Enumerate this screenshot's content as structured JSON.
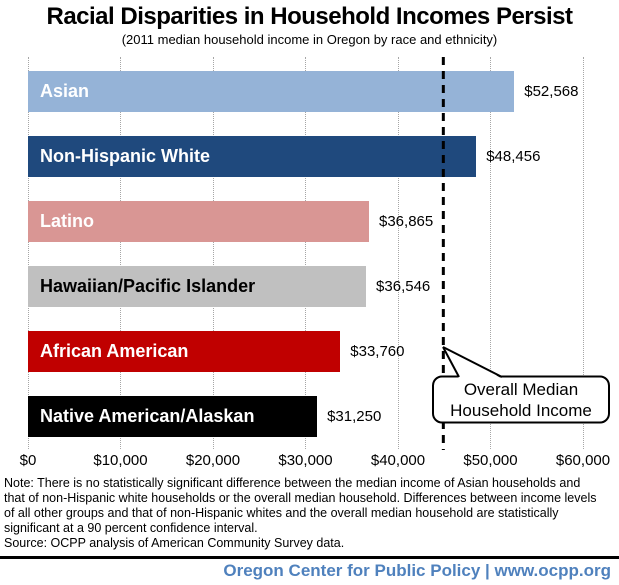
{
  "title": "Racial Disparities in Household Incomes Persist",
  "subtitle": "(2011 median household income in Oregon by race and ethnicity)",
  "chart_data": {
    "type": "bar",
    "orientation": "horizontal",
    "title": "Racial Disparities in Household Incomes Persist",
    "subtitle": "(2011 median household income in Oregon by race and ethnicity)",
    "categories": [
      "Asian",
      "Non-Hispanic White",
      "Latino",
      "Hawaiian/Pacific Islander",
      "African American",
      "Native American/Alaskan"
    ],
    "values": [
      52568,
      48456,
      36865,
      36546,
      33760,
      31250
    ],
    "value_labels": [
      "$52,568",
      "$48,456",
      "$36,865",
      "$36,546",
      "$33,760",
      "$31,250"
    ],
    "bar_colors": [
      "#95b3d7",
      "#1f497d",
      "#d99694",
      "#c0c0c0",
      "#c00000",
      "#000000"
    ],
    "bar_label_colors": [
      "#ffffff",
      "#ffffff",
      "#ffffff",
      "#000000",
      "#ffffff",
      "#ffffff"
    ],
    "xlim": [
      0,
      60000
    ],
    "x_tick_values": [
      0,
      10000,
      20000,
      30000,
      40000,
      50000,
      60000
    ],
    "x_tick_labels": [
      "$0",
      "$10,000",
      "$20,000",
      "$30,000",
      "$40,000",
      "$50,000",
      "$60,000"
    ],
    "grid": "vertical dotted",
    "legend": "none",
    "annotation": {
      "type": "dashed-vertical-line-with-callout",
      "value_estimate": 44900,
      "label_lines": [
        "Overall Median",
        "Household Income"
      ]
    }
  },
  "note_lines": [
    "Note: There is no statistically significant difference between the median income of Asian households and",
    "that of non-Hispanic white households or the overall median household. Differences between income levels",
    "of all other groups and that of non-Hispanic whites and the overall median household are statistically",
    "significant at a 90 percent confidence interval.",
    "Source: OCPP analysis of American Community Survey data."
  ],
  "footer": {
    "text": "Oregon Center for Public Policy | www.ocpp.org",
    "color": "#4f81bd"
  }
}
